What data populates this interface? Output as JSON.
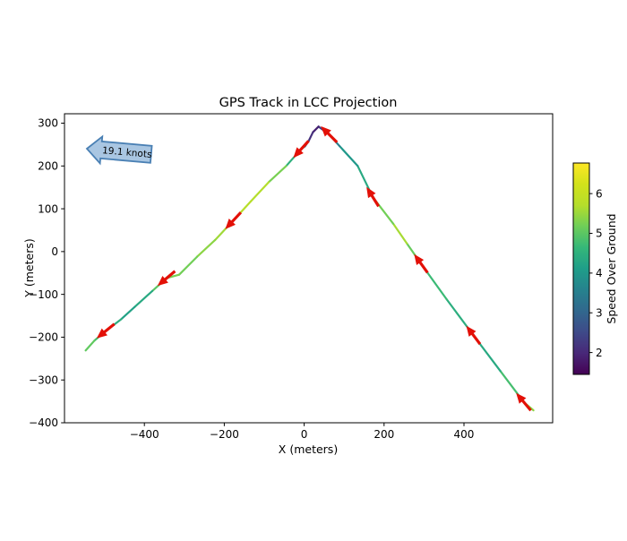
{
  "title": "GPS Track in LCC Projection",
  "xlabel": "X (meters)",
  "ylabel": "Y (meters)",
  "axes": {
    "x_ticks": [
      -400,
      -200,
      0,
      200,
      400
    ],
    "y_ticks": [
      300,
      200,
      100,
      0,
      -100,
      -200,
      -300,
      -400
    ],
    "xlim": [
      -600,
      622
    ],
    "ylim": [
      -400,
      322
    ]
  },
  "colorbar": {
    "label": "Speed Over Ground",
    "ticks": [
      2,
      3,
      4,
      5,
      6
    ],
    "vmin": 1.45,
    "vmax": 6.77
  },
  "annotation": {
    "text": "19.1 knots",
    "value_knots": 19.1,
    "fill_color": "#a9c6e2",
    "border_color": "#4a80b4"
  },
  "colors": {
    "arrow": "#e31007",
    "colormap": "viridis",
    "frame": "#000000"
  },
  "chart_data": {
    "type": "line",
    "title": "GPS Track in LCC Projection",
    "xlabel": "X (meters)",
    "ylabel": "Y (meters)",
    "colorbar_label": "Speed Over Ground",
    "legend": "none",
    "grid": false,
    "xlim": [
      -600,
      622
    ],
    "ylim": [
      -400,
      322
    ],
    "track": {
      "x": [
        574,
        550,
        491,
        424,
        357,
        293,
        257,
        223,
        172,
        134,
        89,
        63,
        49,
        36,
        22,
        11,
        2,
        -7,
        -45,
        -89,
        -134,
        -177,
        -223,
        -268,
        -313,
        -344,
        -380,
        -424,
        -458,
        -496,
        -525,
        -547
      ],
      "y": [
        -371,
        -352,
        -279,
        -196,
        -112,
        -29,
        19,
        65,
        127,
        200,
        246,
        273,
        283,
        292,
        279,
        258,
        246,
        240,
        200,
        162,
        117,
        73,
        27,
        -12,
        -54,
        -62,
        -92,
        -129,
        -158,
        -185,
        -208,
        -231
      ],
      "speed_over_ground": [
        5.6,
        5.2,
        4.4,
        4.3,
        4.6,
        4.8,
        5.4,
        5.8,
        4.6,
        4.1,
        3.9,
        3.2,
        2.6,
        2.0,
        1.8,
        2.4,
        3.3,
        4.0,
        5.0,
        5.5,
        5.9,
        5.6,
        5.5,
        5.3,
        5.1,
        5.4,
        4.6,
        4.1,
        4.3,
        4.6,
        5.0,
        5.1
      ]
    },
    "heading_arrows": [
      {
        "x": 550,
        "y": -352,
        "angle_deg": 230
      },
      {
        "x": 424,
        "y": -196,
        "angle_deg": 233
      },
      {
        "x": 293,
        "y": -29,
        "angle_deg": 234
      },
      {
        "x": 172,
        "y": 127,
        "angle_deg": 238
      },
      {
        "x": 63,
        "y": 273,
        "angle_deg": 225
      },
      {
        "x": -7,
        "y": 240,
        "angle_deg": 132
      },
      {
        "x": -177,
        "y": 73,
        "angle_deg": 133
      },
      {
        "x": -344,
        "y": -62,
        "angle_deg": 140
      },
      {
        "x": -496,
        "y": -185,
        "angle_deg": 141
      }
    ]
  }
}
